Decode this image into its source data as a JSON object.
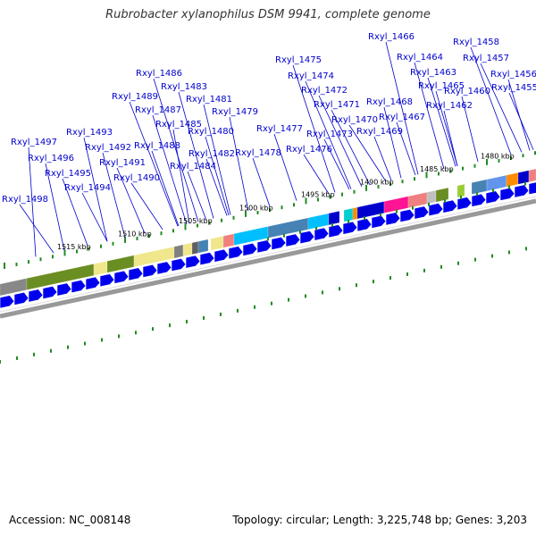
{
  "title": "Rubrobacter xylanophilus DSM 9941, complete genome",
  "footer": {
    "accession": "Accession: NC_008148",
    "topology": "Topology: circular; Length: 3,225,748 bp; Genes: 3,203"
  },
  "colors": {
    "gene_blue": "#0000ee",
    "label_blue": "#0000cc",
    "tick_green": "#228b22",
    "track_gray": "#999999"
  },
  "kbp_labels": [
    "1515 kbp",
    "1510 kbp",
    "1505 kbp",
    "1500 kbp",
    "1495 kbp",
    "1490 kbp",
    "1485 kbp",
    "1480 kbp"
  ],
  "gene_labels": [
    "Rxyl_1466",
    "Rxyl_1458",
    "Rxyl_1464",
    "Rxyl_1457",
    "Rxyl_1475",
    "Rxyl_1463",
    "Rxyl_1486",
    "Rxyl_1474",
    "Rxyl_1465",
    "Rxyl_1456",
    "Rxyl_1483",
    "Rxyl_1472",
    "Rxyl_1460",
    "Rxyl_1455",
    "Rxyl_1489",
    "Rxyl_1481",
    "Rxyl_1468",
    "Rxyl_1462",
    "Rxyl_1471",
    "Rxyl_1487",
    "Rxyl_1479",
    "Rxyl_1467",
    "Rxyl_1470",
    "Rxyl_1485",
    "Rxyl_1477",
    "Rxyl_1480",
    "Rxyl_1473",
    "Rxyl_1469",
    "Rxyl_1493",
    "Rxyl_1497",
    "Rxyl_1488",
    "Rxyl_1476",
    "Rxyl_1492",
    "Rxyl_1482",
    "Rxyl_1478",
    "Rxyl_1496",
    "Rxyl_1491",
    "Rxyl_1484",
    "Rxyl_1495",
    "Rxyl_1490",
    "Rxyl_1494",
    "Rxyl_1498"
  ]
}
